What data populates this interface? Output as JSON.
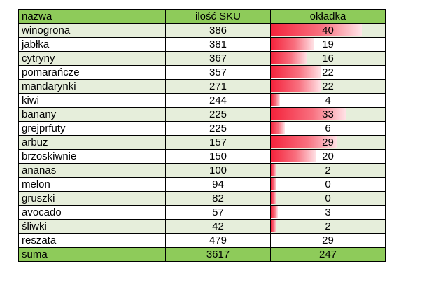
{
  "table": {
    "headers": {
      "name": "nazwa",
      "sku": "ilość SKU",
      "cover": "okładka"
    },
    "max_cover": 40,
    "bar_color": "#f4223b",
    "header_color": "#8ecb5a",
    "stripe_color": "#e6eedb",
    "rows": [
      {
        "name": "winogrona",
        "sku": "386",
        "cover": "40"
      },
      {
        "name": "jabłka",
        "sku": "381",
        "cover": "19"
      },
      {
        "name": "cytryny",
        "sku": "367",
        "cover": "16"
      },
      {
        "name": "pomarańcze",
        "sku": "357",
        "cover": "22"
      },
      {
        "name": "mandarynki",
        "sku": "271",
        "cover": "22"
      },
      {
        "name": "kiwi",
        "sku": "244",
        "cover": "4"
      },
      {
        "name": "banany",
        "sku": "225",
        "cover": "33"
      },
      {
        "name": "grejprfuty",
        "sku": "225",
        "cover": "6"
      },
      {
        "name": "arbuz",
        "sku": "157",
        "cover": "29"
      },
      {
        "name": "brzoskiwnie",
        "sku": "150",
        "cover": "20"
      },
      {
        "name": "ananas",
        "sku": "100",
        "cover": "2"
      },
      {
        "name": "melon",
        "sku": "94",
        "cover": "0"
      },
      {
        "name": "gruszki",
        "sku": "82",
        "cover": "0"
      },
      {
        "name": "avocado",
        "sku": "57",
        "cover": "3"
      },
      {
        "name": "śliwki",
        "sku": "42",
        "cover": "2"
      }
    ],
    "other": {
      "name": "reszata",
      "sku": "479",
      "cover": "29"
    },
    "total": {
      "name": "suma",
      "sku": "3617",
      "cover": "247"
    }
  }
}
